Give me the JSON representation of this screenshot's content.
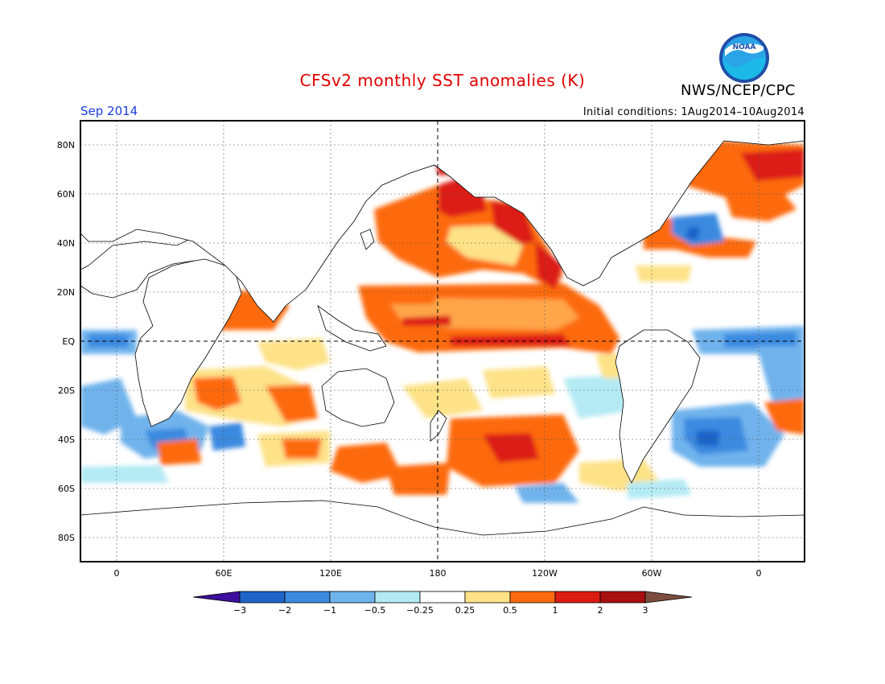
{
  "header": {
    "title": "CFSv2 monthly SST anomalies (K)",
    "agency": "NWS/NCEP/CPC",
    "month": "Sep 2014",
    "initial_conditions": "Initial conditions: 1Aug2014–10Aug2014",
    "logo_text": "NOAA"
  },
  "map": {
    "lat_labels": [
      "80N",
      "60N",
      "40N",
      "20N",
      "EQ",
      "20S",
      "40S",
      "60S",
      "80S"
    ],
    "lon_labels": [
      "0",
      "60E",
      "120E",
      "180",
      "120W",
      "60W",
      "0"
    ]
  },
  "colorbar": {
    "labels": [
      "−3",
      "−2",
      "−1",
      "−0.5",
      "−0.25",
      "0.25",
      "0.5",
      "1",
      "2",
      "3"
    ],
    "colors": [
      "#3d0f9e",
      "#1f64c8",
      "#3a8ae0",
      "#6fb3ec",
      "#b4eaf4",
      "#ffffff",
      "#fde287",
      "#fd6a0f",
      "#dc1b12",
      "#a90f0f",
      "#7d4e3d"
    ]
  }
}
